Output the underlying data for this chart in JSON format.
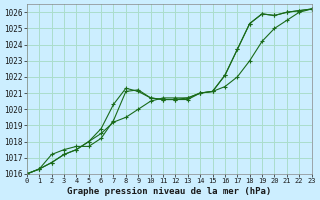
{
  "title": "Graphe pression niveau de la mer (hPa)",
  "bg_color": "#cceeff",
  "grid_color": "#aaddcc",
  "line_color": "#1a6b1a",
  "xlim": [
    0,
    23
  ],
  "ylim": [
    1016,
    1026.5
  ],
  "yticks": [
    1016,
    1017,
    1018,
    1019,
    1020,
    1021,
    1022,
    1023,
    1024,
    1025,
    1026
  ],
  "xticks": [
    0,
    1,
    2,
    3,
    4,
    5,
    6,
    7,
    8,
    9,
    10,
    11,
    12,
    13,
    14,
    15,
    16,
    17,
    18,
    19,
    20,
    21,
    22,
    23
  ],
  "series": [
    [
      1016.0,
      1016.3,
      1016.7,
      1017.2,
      1017.5,
      1018.0,
      1018.8,
      1020.3,
      1021.3,
      1021.1,
      1020.7,
      1020.6,
      1020.6,
      1020.6,
      1021.0,
      1021.1,
      1022.1,
      1023.7,
      1025.3,
      1025.9,
      1025.8,
      1026.0,
      1026.1,
      1026.2
    ],
    [
      1016.0,
      1016.3,
      1016.7,
      1017.2,
      1017.5,
      1018.0,
      1018.5,
      1019.2,
      1019.5,
      1020.0,
      1020.5,
      1020.7,
      1020.7,
      1020.7,
      1021.0,
      1021.1,
      1021.4,
      1022.0,
      1023.0,
      1024.2,
      1025.0,
      1025.5,
      1026.0,
      1026.2
    ],
    [
      1016.0,
      1016.3,
      1017.2,
      1017.5,
      1017.7,
      1017.7,
      1018.2,
      1019.3,
      1021.1,
      1021.2,
      1020.7,
      1020.6,
      1020.6,
      1020.7,
      1021.0,
      1021.1,
      1022.1,
      1023.7,
      1025.3,
      1025.9,
      1025.8,
      1026.0,
      1026.1,
      1026.2
    ]
  ]
}
